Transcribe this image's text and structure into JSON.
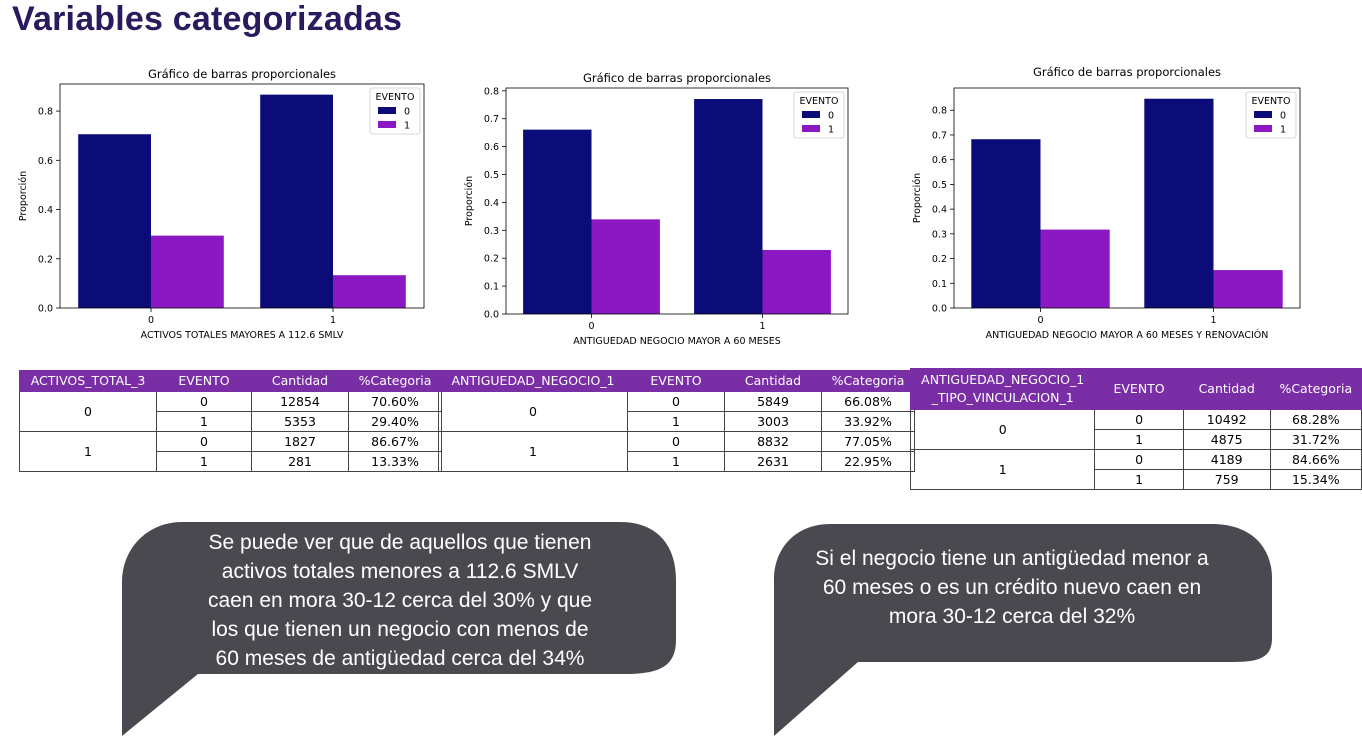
{
  "slide": {
    "title": "Variables categorizadas"
  },
  "colors": {
    "event0": "#0c0c78",
    "event1": "#8c18c4",
    "header": "#7a2ea6",
    "bubble": "#4a4950"
  },
  "chart_data": [
    {
      "type": "bar",
      "title": "Gráfico de barras proporcionales",
      "xlabel": "ACTIVOS TOTALES MAYORES A 112.6 SMLV",
      "ylabel": "Proporción",
      "categories": [
        "0",
        "1"
      ],
      "series": [
        {
          "name": "0",
          "values": [
            0.706,
            0.8667
          ]
        },
        {
          "name": "1",
          "values": [
            0.294,
            0.1333
          ]
        }
      ],
      "ylim": [
        0,
        0.91
      ],
      "yticks": [
        "0.0",
        "0.2",
        "0.4",
        "0.6",
        "0.8"
      ],
      "legend": {
        "title": "EVENTO",
        "placement": "top-right"
      }
    },
    {
      "type": "bar",
      "title": "Gráfico de barras proporcionales",
      "xlabel": "ANTIGUEDAD NEGOCIO MAYOR A 60 MESES",
      "ylabel": "Proporción",
      "categories": [
        "0",
        "1"
      ],
      "series": [
        {
          "name": "0",
          "values": [
            0.6608,
            0.7705
          ]
        },
        {
          "name": "1",
          "values": [
            0.3392,
            0.2295
          ]
        }
      ],
      "ylim": [
        0,
        0.81
      ],
      "yticks": [
        "0.0",
        "0.1",
        "0.2",
        "0.3",
        "0.4",
        "0.5",
        "0.6",
        "0.7",
        "0.8"
      ],
      "legend": {
        "title": "EVENTO",
        "placement": "top-right"
      }
    },
    {
      "type": "bar",
      "title": "Gráfico de barras proporcionales",
      "xlabel": "ANTIGUEDAD NEGOCIO MAYOR A 60 MESES Y RENOVACIÓN",
      "ylabel": "Proporción",
      "categories": [
        "0",
        "1"
      ],
      "series": [
        {
          "name": "0",
          "values": [
            0.6828,
            0.8466
          ]
        },
        {
          "name": "1",
          "values": [
            0.3172,
            0.1534
          ]
        }
      ],
      "ylim": [
        0,
        0.89
      ],
      "yticks": [
        "0.0",
        "0.1",
        "0.2",
        "0.3",
        "0.4",
        "0.5",
        "0.6",
        "0.7",
        "0.8"
      ],
      "legend": {
        "title": "EVENTO",
        "placement": "top-right"
      }
    }
  ],
  "tables": [
    {
      "headers": [
        "ACTIVOS_TOTAL_3",
        "EVENTO",
        "Cantidad",
        "%Categoria"
      ],
      "groups": [
        {
          "label": "0",
          "rows": [
            [
              "0",
              "12854",
              "70.60%"
            ],
            [
              "1",
              "5353",
              "29.40%"
            ]
          ]
        },
        {
          "label": "1",
          "rows": [
            [
              "0",
              "1827",
              "86.67%"
            ],
            [
              "1",
              "281",
              "13.33%"
            ]
          ]
        }
      ]
    },
    {
      "headers": [
        "ANTIGUEDAD_NEGOCIO_1",
        "EVENTO",
        "Cantidad",
        "%Categoria"
      ],
      "groups": [
        {
          "label": "0",
          "rows": [
            [
              "0",
              "5849",
              "66.08%"
            ],
            [
              "1",
              "3003",
              "33.92%"
            ]
          ]
        },
        {
          "label": "1",
          "rows": [
            [
              "0",
              "8832",
              "77.05%"
            ],
            [
              "1",
              "2631",
              "22.95%"
            ]
          ]
        }
      ]
    },
    {
      "headers": [
        "ANTIGUEDAD_NEGOCIO_1\n_TIPO_VINCULACION_1",
        "EVENTO",
        "Cantidad",
        "%Categoria"
      ],
      "groups": [
        {
          "label": "0",
          "rows": [
            [
              "0",
              "10492",
              "68.28%"
            ],
            [
              "1",
              "4875",
              "31.72%"
            ]
          ]
        },
        {
          "label": "1",
          "rows": [
            [
              "0",
              "4189",
              "84.66%"
            ],
            [
              "1",
              "759",
              "15.34%"
            ]
          ]
        }
      ]
    }
  ],
  "bubbles": [
    {
      "lines": [
        "Se puede ver que de aquellos que tienen",
        "activos totales menores a 112.6 SMLV",
        "caen en mora 30-12 cerca del 30% y que",
        "los que tienen un negocio con menos de",
        "60 meses de antigüedad cerca del 34%"
      ]
    },
    {
      "lines": [
        "Si el negocio tiene un antigüedad menor a",
        "60 meses o es un crédito nuevo caen en",
        "mora 30-12 cerca del 32%"
      ]
    }
  ]
}
